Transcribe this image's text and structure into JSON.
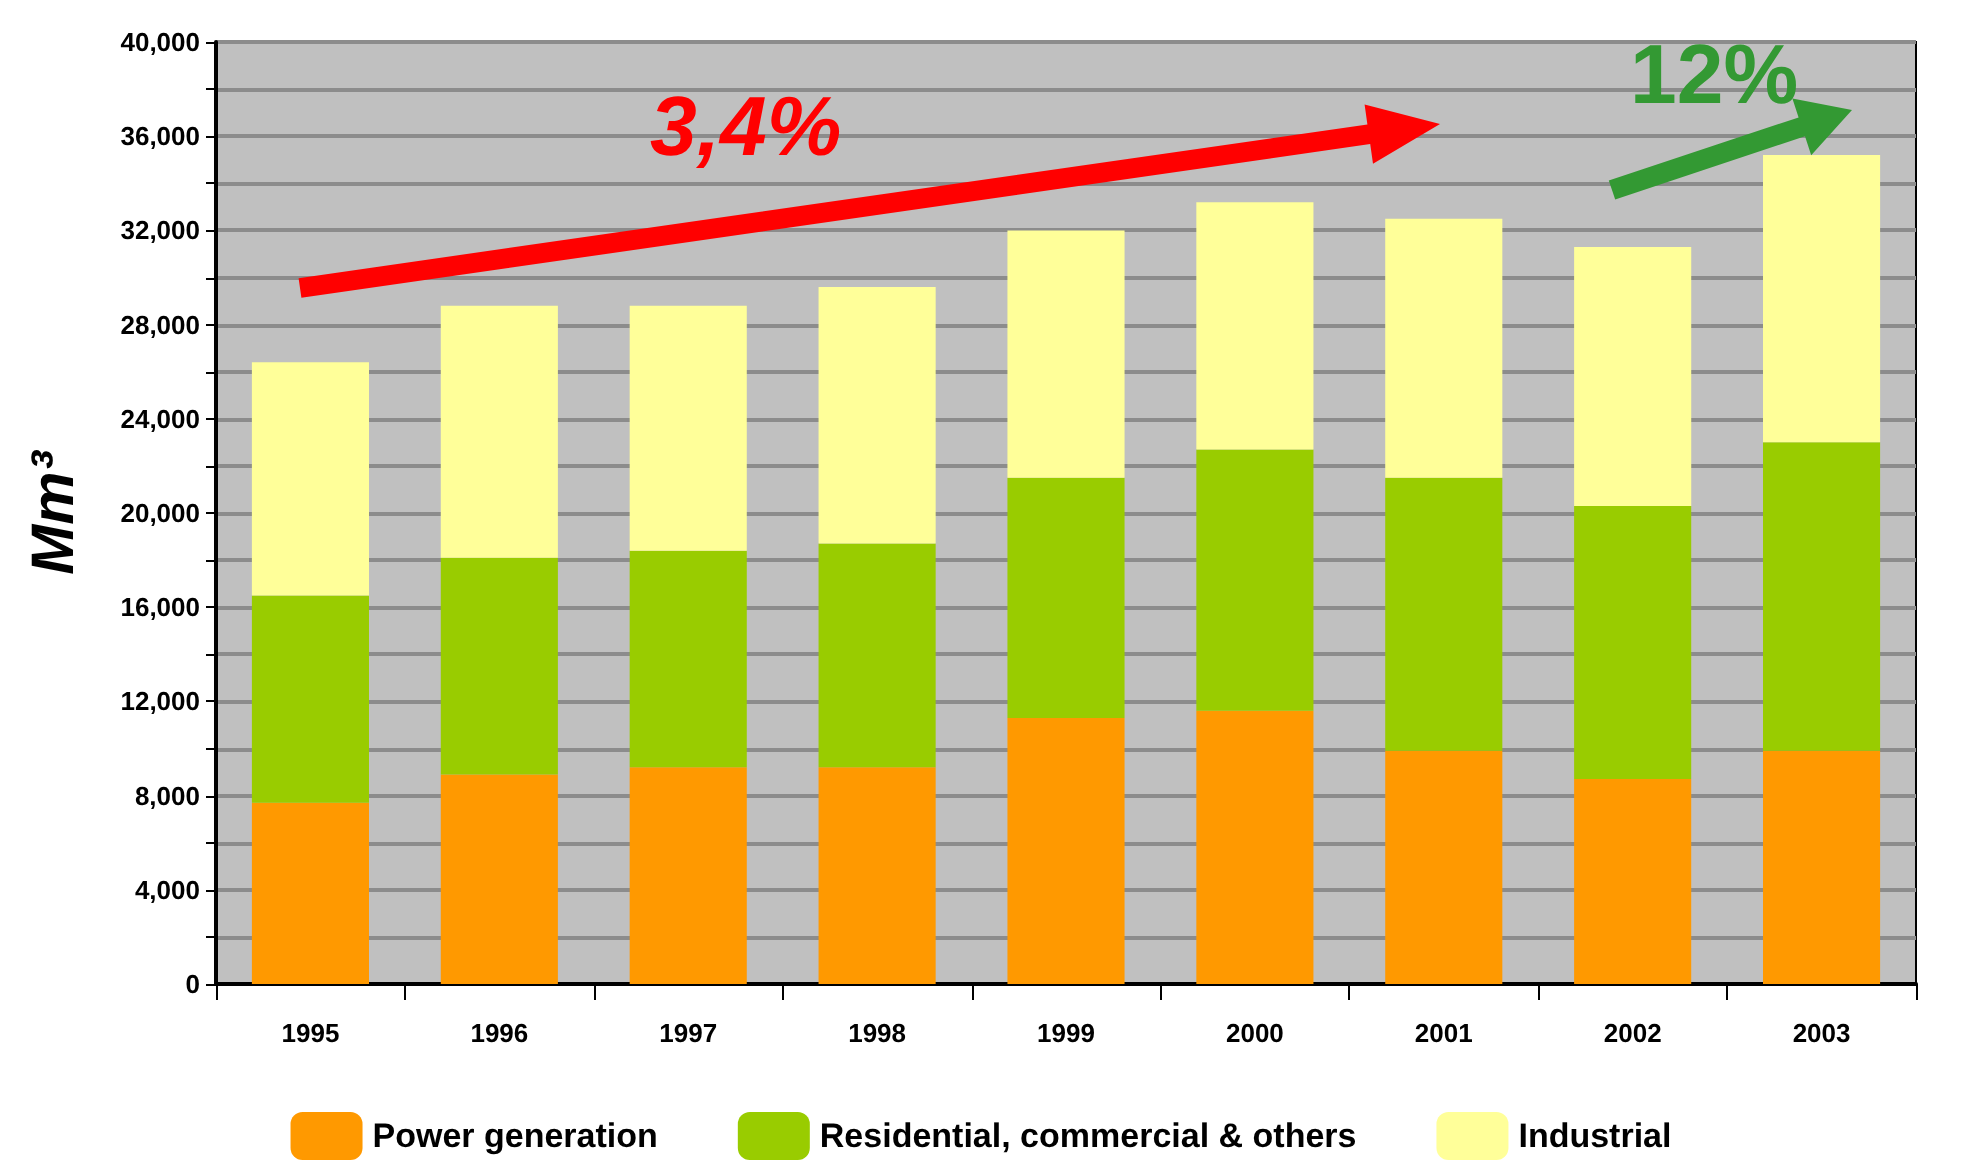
{
  "chart_data": {
    "type": "bar",
    "stacked": true,
    "ylabel": "Mm³",
    "categories": [
      "1995",
      "1996",
      "1997",
      "1998",
      "1999",
      "2000",
      "2001",
      "2002",
      "2003"
    ],
    "series": [
      {
        "name": "Power generation",
        "color": "#ff9900",
        "values": [
          7700,
          8900,
          9200,
          9200,
          11300,
          11600,
          9900,
          8700,
          9900
        ]
      },
      {
        "name": "Residential, commercial & others",
        "color": "#99cc00",
        "values": [
          8800,
          9200,
          9200,
          9500,
          10200,
          11100,
          11600,
          11600,
          13100
        ]
      },
      {
        "name": "Industrial",
        "color": "#ffff99",
        "values": [
          9900,
          10700,
          10400,
          10900,
          10500,
          10500,
          11000,
          11000,
          12200
        ]
      }
    ],
    "ylim": [
      0,
      40000
    ],
    "yticks": [
      {
        "value": 0,
        "label": "0"
      },
      {
        "value": 2000,
        "label": null
      },
      {
        "value": 4000,
        "label": "4,000"
      },
      {
        "value": 6000,
        "label": null
      },
      {
        "value": 8000,
        "label": "8,000"
      },
      {
        "value": 10000,
        "label": null
      },
      {
        "value": 12000,
        "label": "12,000"
      },
      {
        "value": 14000,
        "label": null
      },
      {
        "value": 16000,
        "label": "16,000"
      },
      {
        "value": 18000,
        "label": null
      },
      {
        "value": 20000,
        "label": "20,000"
      },
      {
        "value": 22000,
        "label": null
      },
      {
        "value": 24000,
        "label": "24,000"
      },
      {
        "value": 26000,
        "label": null
      },
      {
        "value": 28000,
        "label": "28,000"
      },
      {
        "value": 30000,
        "label": null
      },
      {
        "value": 32000,
        "label": "32,000"
      },
      {
        "value": 34000,
        "label": null
      },
      {
        "value": 36000,
        "label": "36,000"
      },
      {
        "value": 38000,
        "label": null
      },
      {
        "value": 40000,
        "label": "40,000"
      }
    ],
    "grid": "y",
    "legend": "bottom",
    "annotations": [
      "3,4%",
      "12%"
    ]
  }
}
